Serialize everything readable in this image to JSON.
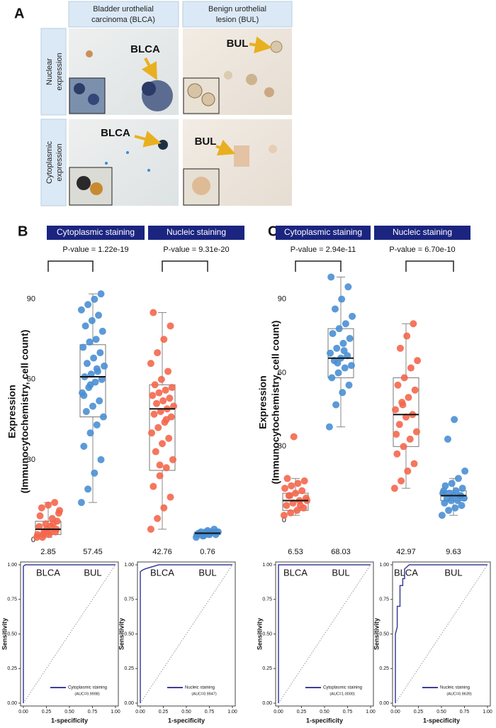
{
  "panel_a": {
    "label": "A",
    "columns": [
      [
        "Bladder urothelial",
        "carcinoma (BLCA)"
      ],
      [
        "Benign urothelial",
        "lesion (BUL)"
      ]
    ],
    "rows": [
      [
        "Nuclear",
        "expression"
      ],
      [
        "Cytoplasmic",
        "expression"
      ]
    ],
    "image_labels": [
      "BLCA",
      "BUL",
      "BLCA",
      "BUL"
    ]
  },
  "chart_data": [
    {
      "type": "box",
      "panel": "B",
      "ylabel": [
        "Expression",
        "(Immunocytochemistry, cell count)"
      ],
      "ylim": [
        -4,
        100
      ],
      "yticks": [
        0,
        30,
        60,
        90
      ],
      "groups": [
        {
          "name": "Cytoplasmic staining",
          "p_value": "P-value = 1.22e-19"
        },
        {
          "name": "Nucleic staining",
          "p_value": "P-value = 9.31e-20"
        }
      ],
      "series": [
        {
          "name": "BLCA",
          "color": "#f4674c",
          "box": [
            1,
            2,
            4,
            7,
            14
          ],
          "stat": 2.85,
          "points": [
            1,
            2,
            3,
            4,
            5,
            6,
            8,
            10,
            12,
            13,
            14,
            2,
            3,
            5,
            7,
            9,
            4,
            6,
            11,
            1,
            2,
            3
          ]
        },
        {
          "name": "BUL",
          "color": "#4a8fd4",
          "box": [
            14,
            46,
            61,
            73,
            92
          ],
          "stat": 57.45,
          "points": [
            14,
            19,
            25,
            30,
            35,
            40,
            43,
            46,
            48,
            50,
            52,
            55,
            57,
            59,
            60,
            61,
            62,
            63,
            65,
            66,
            68,
            70,
            72,
            74,
            75,
            78,
            80,
            82,
            84,
            86,
            88,
            90,
            92,
            54,
            58,
            64
          ]
        },
        {
          "name": "BLCA",
          "color": "#f4674c",
          "box": [
            4,
            26,
            49,
            58,
            85
          ],
          "stat": 42.76,
          "points": [
            4,
            8,
            12,
            16,
            20,
            24,
            27,
            30,
            33,
            36,
            38,
            40,
            42,
            44,
            46,
            47,
            48,
            49,
            50,
            51,
            52,
            53,
            54,
            55,
            56,
            57,
            58,
            60,
            63,
            66,
            70,
            75,
            80,
            85,
            28,
            45
          ]
        },
        {
          "name": "BUL",
          "color": "#4a8fd4",
          "box": [
            1,
            2,
            2.5,
            3,
            4
          ],
          "stat": 0.76,
          "points": [
            1,
            1.5,
            2,
            2,
            2.5,
            2.5,
            3,
            3,
            3,
            3.5,
            4,
            2,
            1.5,
            2.5,
            3
          ]
        }
      ]
    },
    {
      "type": "box",
      "panel": "C",
      "ylabel": [
        "Expression",
        "(Immunocytochemistry, cell count)"
      ],
      "ylim": [
        -4,
        100
      ],
      "yticks": [
        0,
        30,
        60,
        90
      ],
      "groups": [
        {
          "name": "Cytoplasmic staining",
          "p_value": "P-value = 2.94e-11"
        },
        {
          "name": "Nucleic staining",
          "p_value": "P-value = 6.70e-10"
        }
      ],
      "series": [
        {
          "name": "BLCA",
          "color": "#f4674c",
          "box": [
            2,
            4,
            8,
            11,
            17
          ],
          "stat": 6.53,
          "points": [
            2,
            3,
            4,
            5,
            6,
            7,
            8,
            9,
            10,
            11,
            12,
            13,
            14,
            15,
            16,
            17,
            34,
            6,
            8,
            10
          ]
        },
        {
          "name": "BUL",
          "color": "#4a8fd4",
          "box": [
            38,
            58,
            66,
            78,
            99
          ],
          "stat": 68.03,
          "points": [
            38,
            47,
            52,
            55,
            58,
            60,
            62,
            63,
            65,
            66,
            67,
            68,
            70,
            72,
            74,
            76,
            78,
            80,
            83,
            86,
            90,
            95,
            99,
            64,
            69
          ]
        },
        {
          "name": "BLCA",
          "color": "#f4674c",
          "box": [
            13,
            30,
            43,
            58,
            80
          ],
          "stat": 42.97,
          "points": [
            13,
            16,
            20,
            23,
            27,
            30,
            33,
            36,
            39,
            42,
            43,
            45,
            48,
            50,
            53,
            55,
            58,
            62,
            65,
            70,
            75,
            80,
            35,
            47
          ]
        },
        {
          "name": "BUL",
          "color": "#4a8fd4",
          "box": [
            2,
            8,
            10,
            12,
            17
          ],
          "stat": 9.63,
          "points": [
            2,
            4,
            5,
            6,
            7,
            8,
            8,
            9,
            9,
            10,
            10,
            11,
            11,
            12,
            13,
            14,
            15,
            17,
            20,
            33,
            41,
            10,
            12
          ]
        }
      ]
    },
    {
      "type": "line",
      "ylabel": "Sensitivity",
      "xlabel": "1-specificity",
      "xlim": [
        0,
        1
      ],
      "ylim": [
        0,
        1
      ],
      "xticks": [
        {
          "value": 0,
          "label": "0.00"
        },
        {
          "value": 0.25,
          "label": "0.25"
        },
        {
          "value": 0.5,
          "label": "0.50"
        },
        {
          "value": 0.75,
          "label": "0.75"
        },
        {
          "value": 1,
          "label": "1.00"
        }
      ],
      "yticks": [
        {
          "value": 0,
          "label": "0.00"
        },
        {
          "value": 0.25,
          "label": "0.25"
        },
        {
          "value": 0.5,
          "label": "0.50"
        },
        {
          "value": 0.75,
          "label": "0.75"
        },
        {
          "value": 1,
          "label": "1.00"
        }
      ],
      "annotation": "(AUC=0.9998)",
      "series": [
        {
          "name": "Cytoplasmic staining",
          "color": "#3b3f9a",
          "x": [
            0,
            0,
            0.02,
            1
          ],
          "values": [
            0,
            0.99,
            1,
            1
          ]
        }
      ]
    },
    {
      "type": "line",
      "ylabel": "Sensitivity",
      "xlabel": "1-specificity",
      "xlim": [
        0,
        1
      ],
      "ylim": [
        0,
        1
      ],
      "xticks": [
        {
          "value": 0,
          "label": "0.00"
        },
        {
          "value": 0.25,
          "label": "0.25"
        },
        {
          "value": 0.5,
          "label": "0.50"
        },
        {
          "value": 0.75,
          "label": "0.75"
        },
        {
          "value": 1,
          "label": "1.00"
        }
      ],
      "yticks": [
        {
          "value": 0,
          "label": "0.00"
        },
        {
          "value": 0.25,
          "label": "0.25"
        },
        {
          "value": 0.5,
          "label": "0.50"
        },
        {
          "value": 0.75,
          "label": "0.75"
        },
        {
          "value": 1,
          "label": "1.00"
        }
      ],
      "annotation": "(AUC=0.9947)",
      "series": [
        {
          "name": "Nucleic staining",
          "color": "#3b3f9a",
          "x": [
            0,
            0,
            0.02,
            0.05,
            0.1,
            0.2,
            1
          ],
          "values": [
            0,
            0.95,
            0.96,
            0.97,
            0.98,
            1,
            1
          ]
        }
      ]
    },
    {
      "type": "line",
      "ylabel": "Sensitivity",
      "xlabel": "1-specificity",
      "xlim": [
        0,
        1
      ],
      "ylim": [
        0,
        1
      ],
      "xticks": [
        {
          "value": 0,
          "label": "0.00"
        },
        {
          "value": 0.25,
          "label": "0.25"
        },
        {
          "value": 0.5,
          "label": "0.50"
        },
        {
          "value": 0.75,
          "label": "0.75"
        },
        {
          "value": 1,
          "label": "1.00"
        }
      ],
      "yticks": [
        {
          "value": 0,
          "label": "0.00"
        },
        {
          "value": 0.25,
          "label": "0.25"
        },
        {
          "value": 0.5,
          "label": "0.50"
        },
        {
          "value": 0.75,
          "label": "0.75"
        },
        {
          "value": 1,
          "label": "1.00"
        }
      ],
      "annotation": "(AUC=1.0000)",
      "series": [
        {
          "name": "Cytoplasmic staining",
          "color": "#3b3f9a",
          "x": [
            0,
            0,
            1
          ],
          "values": [
            0,
            1,
            1
          ]
        }
      ]
    },
    {
      "type": "line",
      "ylabel": "Sensitivity",
      "xlabel": "1-specificity",
      "xlim": [
        0,
        1
      ],
      "ylim": [
        0,
        1
      ],
      "xticks": [
        {
          "value": 0,
          "label": "0.00"
        },
        {
          "value": 0.25,
          "label": "0.25"
        },
        {
          "value": 0.5,
          "label": "0.50"
        },
        {
          "value": 0.75,
          "label": "0.75"
        },
        {
          "value": 1,
          "label": "1.00"
        }
      ],
      "yticks": [
        {
          "value": 0,
          "label": "0.00"
        },
        {
          "value": 0.25,
          "label": "0.25"
        },
        {
          "value": 0.5,
          "label": "0.50"
        },
        {
          "value": 0.75,
          "label": "0.75"
        },
        {
          "value": 1,
          "label": "1.00"
        }
      ],
      "annotation": "(AUC=0.9639)",
      "series": [
        {
          "name": "Nucleic staining",
          "color": "#3b3f9a",
          "x": [
            0,
            0,
            0.02,
            0.02,
            0.05,
            0.05,
            0.08,
            0.08,
            0.1,
            0.1,
            0.15,
            1
          ],
          "values": [
            0,
            0.5,
            0.55,
            0.7,
            0.7,
            0.85,
            0.85,
            0.9,
            0.9,
            0.97,
            1,
            1
          ]
        }
      ]
    }
  ]
}
